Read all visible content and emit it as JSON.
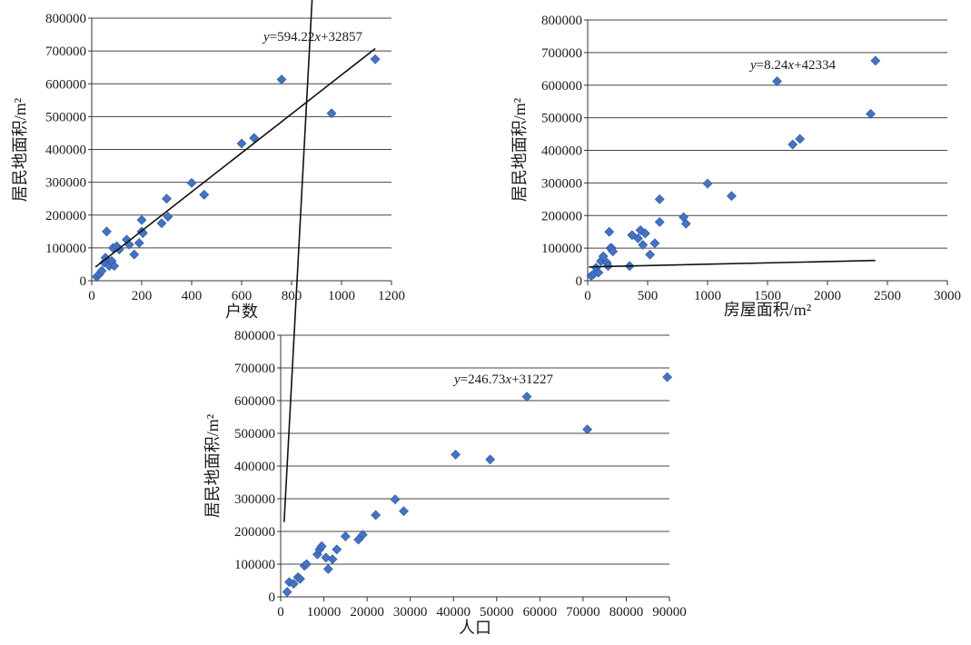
{
  "chart_data": [
    {
      "type": "scatter",
      "title": "",
      "xlabel": "户数",
      "ylabel": "居民地面积/m²",
      "xlim": [
        0,
        1200
      ],
      "ylim": [
        0,
        800000
      ],
      "x_ticks": [
        "0",
        "200",
        "400",
        "600",
        "800",
        "1000",
        "1200"
      ],
      "y_ticks": [
        "0",
        "100000",
        "200000",
        "300000",
        "400000",
        "500000",
        "600000",
        "700000",
        "800000"
      ],
      "grid": "horizontal",
      "marker_color": "#4472C4",
      "trendline": {
        "slope": 594.22,
        "intercept": 32857,
        "x_range": [
          15,
          1135
        ],
        "label_prefix": "y",
        "label_rest": "=594.22",
        "label_var": "x",
        "label_tail": "+32857"
      },
      "points": [
        [
          20,
          12000
        ],
        [
          30,
          20000
        ],
        [
          40,
          30000
        ],
        [
          50,
          55000
        ],
        [
          55,
          70000
        ],
        [
          60,
          150000
        ],
        [
          70,
          45000
        ],
        [
          80,
          60000
        ],
        [
          85,
          100000
        ],
        [
          90,
          45000
        ],
        [
          100,
          105000
        ],
        [
          110,
          95000
        ],
        [
          140,
          125000
        ],
        [
          150,
          110000
        ],
        [
          170,
          80000
        ],
        [
          190,
          115000
        ],
        [
          200,
          150000
        ],
        [
          205,
          145000
        ],
        [
          200,
          185000
        ],
        [
          280,
          175000
        ],
        [
          300,
          250000
        ],
        [
          305,
          195000
        ],
        [
          400,
          298000
        ],
        [
          450,
          262000
        ],
        [
          600,
          418000
        ],
        [
          650,
          435000
        ],
        [
          760,
          613000
        ],
        [
          960,
          510000
        ],
        [
          1135,
          675000
        ]
      ]
    },
    {
      "type": "scatter",
      "title": "",
      "xlabel": "房屋面积/m²",
      "ylabel": "居民地面积/m²",
      "xlim": [
        0,
        3000
      ],
      "ylim": [
        0,
        800000
      ],
      "x_ticks": [
        "0",
        "500",
        "1000",
        "1500",
        "2000",
        "2500",
        "3000"
      ],
      "y_ticks": [
        "0",
        "100000",
        "200000",
        "300000",
        "400000",
        "500000",
        "600000",
        "700000",
        "800000"
      ],
      "grid": "horizontal",
      "marker_color": "#4472C4",
      "trendline": {
        "slope": 8.24,
        "intercept": 42334,
        "x_range": [
          10,
          2400
        ],
        "label_prefix": "y",
        "label_rest": "=8.24",
        "label_var": "x",
        "label_tail": "+42334"
      },
      "points": [
        [
          30,
          15000
        ],
        [
          50,
          20000
        ],
        [
          70,
          40000
        ],
        [
          90,
          25000
        ],
        [
          110,
          60000
        ],
        [
          130,
          75000
        ],
        [
          160,
          55000
        ],
        [
          170,
          45000
        ],
        [
          180,
          150000
        ],
        [
          190,
          100000
        ],
        [
          200,
          100000
        ],
        [
          210,
          90000
        ],
        [
          350,
          45000
        ],
        [
          370,
          140000
        ],
        [
          420,
          130000
        ],
        [
          440,
          155000
        ],
        [
          460,
          110000
        ],
        [
          480,
          145000
        ],
        [
          520,
          80000
        ],
        [
          560,
          115000
        ],
        [
          600,
          180000
        ],
        [
          600,
          250000
        ],
        [
          800,
          195000
        ],
        [
          820,
          175000
        ],
        [
          1000,
          298000
        ],
        [
          1200,
          260000
        ],
        [
          1580,
          612000
        ],
        [
          1710,
          418000
        ],
        [
          1770,
          435000
        ],
        [
          2360,
          512000
        ],
        [
          2400,
          675000
        ]
      ]
    },
    {
      "type": "scatter",
      "title": "",
      "xlabel": "人口",
      "ylabel": "居民地面积/m²",
      "xlim": [
        0,
        90000
      ],
      "ylim": [
        0,
        800000
      ],
      "x_ticks": [
        "0",
        "10000",
        "20000",
        "30000",
        "40000",
        "50000",
        "60000",
        "70000",
        "80000",
        "90000"
      ],
      "y_ticks": [
        "0",
        "100000",
        "200000",
        "300000",
        "400000",
        "500000",
        "600000",
        "700000",
        "800000"
      ],
      "grid": "horizontal",
      "marker_color": "#4472C4",
      "trendline": {
        "slope": 246.73,
        "intercept": 31227,
        "x_range": [
          800,
          89000
        ],
        "label_prefix": "y",
        "label_rest": "=246.73",
        "label_var": "x",
        "label_tail": "+31227"
      },
      "points": [
        [
          1500,
          15000
        ],
        [
          2000,
          45000
        ],
        [
          3000,
          40000
        ],
        [
          4000,
          60000
        ],
        [
          4500,
          55000
        ],
        [
          5500,
          95000
        ],
        [
          6000,
          100000
        ],
        [
          8500,
          130000
        ],
        [
          9000,
          145000
        ],
        [
          9500,
          155000
        ],
        [
          10500,
          120000
        ],
        [
          11000,
          85000
        ],
        [
          12000,
          115000
        ],
        [
          13000,
          145000
        ],
        [
          15000,
          185000
        ],
        [
          18000,
          175000
        ],
        [
          19000,
          190000
        ],
        [
          22000,
          250000
        ],
        [
          26500,
          298000
        ],
        [
          28500,
          262000
        ],
        [
          40500,
          435000
        ],
        [
          48500,
          420000
        ],
        [
          57000,
          612000
        ],
        [
          71000,
          512000
        ],
        [
          89500,
          672000
        ]
      ]
    }
  ]
}
